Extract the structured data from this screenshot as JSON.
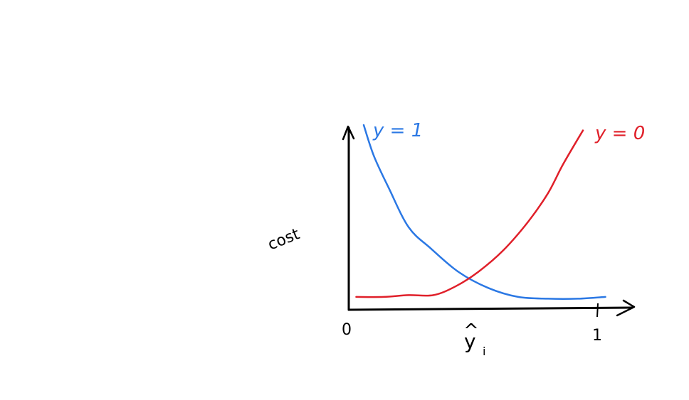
{
  "chart_data": {
    "type": "line",
    "title": "",
    "xlabel": "ŷ_i",
    "xlabel_main": "y",
    "xlabel_sub": "i",
    "xlabel_hat": "^",
    "ylabel": "cost",
    "xlim": [
      0,
      1
    ],
    "ylim": [
      0,
      1
    ],
    "x_ticks": [
      {
        "value": 0,
        "label": "0"
      },
      {
        "value": 1,
        "label": "1"
      }
    ],
    "grid": false,
    "legend": "none",
    "series": [
      {
        "name": "y = 1",
        "color": "#2b78e4",
        "x": [
          0.06,
          0.1,
          0.16,
          0.24,
          0.33,
          0.44,
          0.56,
          0.68,
          0.8,
          0.92,
          1.03
        ],
        "y": [
          1.0,
          0.83,
          0.65,
          0.43,
          0.31,
          0.18,
          0.09,
          0.04,
          0.03,
          0.03,
          0.04
        ]
      },
      {
        "name": "y = 0",
        "color": "#e0202a",
        "x": [
          0.03,
          0.14,
          0.24,
          0.34,
          0.43,
          0.52,
          0.62,
          0.72,
          0.8,
          0.86,
          0.94
        ],
        "y": [
          0.04,
          0.04,
          0.05,
          0.05,
          0.1,
          0.18,
          0.3,
          0.46,
          0.62,
          0.78,
          0.97
        ]
      }
    ]
  }
}
